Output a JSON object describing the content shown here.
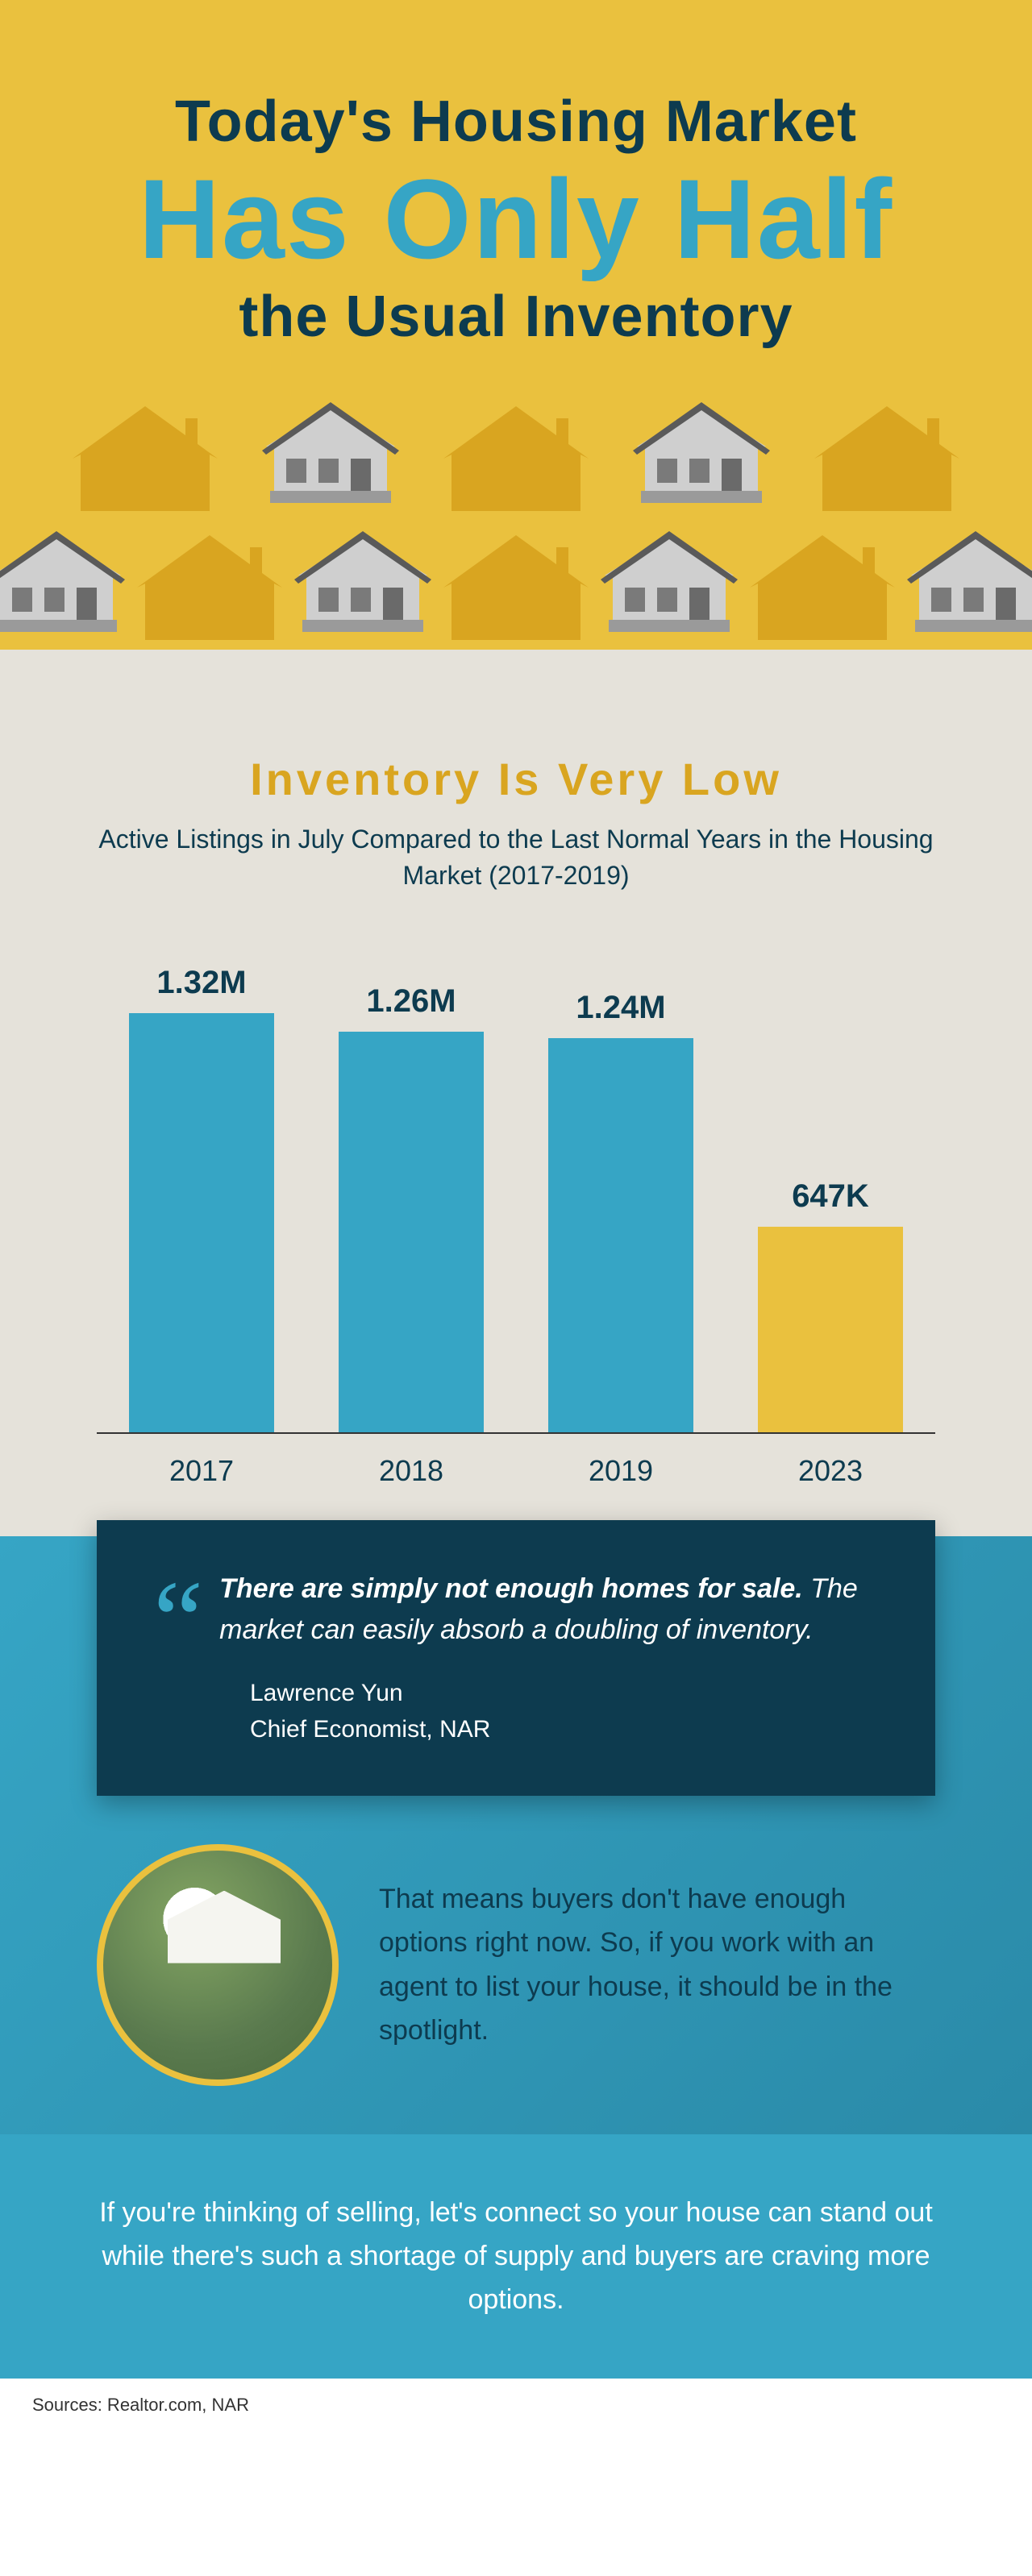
{
  "hero": {
    "line1": "Today's Housing Market",
    "line2": "Has Only Half",
    "line3": "the Usual Inventory",
    "bg_color": "#eac13e",
    "text_color_dark": "#0d3b4f",
    "text_color_accent": "#36a5c5",
    "house_silhouette_color": "#d9a520",
    "house_detail_roof": "#6b6b6b",
    "house_detail_body": "#cfcfcf"
  },
  "chart": {
    "title": "Inventory Is Very Low",
    "subtitle": "Active Listings in July Compared to the Last Normal Years in the Housing Market (2017-2019)",
    "title_color": "#d9a520",
    "subtitle_color": "#0d3b4f",
    "bg_color": "#e5e2da",
    "type": "bar",
    "max_value": 1.32,
    "bar_height_max": 520,
    "bars": [
      {
        "label": "2017",
        "value": 1.32,
        "value_label": "1.32M",
        "color": "#36a5c5"
      },
      {
        "label": "2018",
        "value": 1.26,
        "value_label": "1.26M",
        "color": "#36a5c5"
      },
      {
        "label": "2019",
        "value": 1.24,
        "value_label": "1.24M",
        "color": "#36a5c5"
      },
      {
        "label": "2023",
        "value": 0.647,
        "value_label": "647K",
        "color": "#eac13e"
      }
    ],
    "axis_color": "#333333",
    "label_fontsize": 36,
    "value_fontsize": 40
  },
  "quote": {
    "bold": "There are simply not enough homes for sale.",
    "rest": " The market can easily absorb a doubling of inventory.",
    "author": "Lawrence Yun",
    "role": "Chief Economist, NAR",
    "box_bg": "#0d3b4f",
    "mark_color": "#36a5c5",
    "text_color": "#ffffff"
  },
  "body": {
    "text": "That means buyers don't have enough options right now. So, if you work with an agent to list your house, it should be in the spotlight.",
    "circle_border": "#eac13e",
    "text_color": "#0d3b4f"
  },
  "cta": {
    "text": "If you're thinking of selling, let's connect so your house can stand out while there's such a shortage of supply and buyers are craving more options.",
    "bg_color": "#36a5c5",
    "text_color": "#ffffff"
  },
  "sources": {
    "text": "Sources: Realtor.com, NAR"
  }
}
